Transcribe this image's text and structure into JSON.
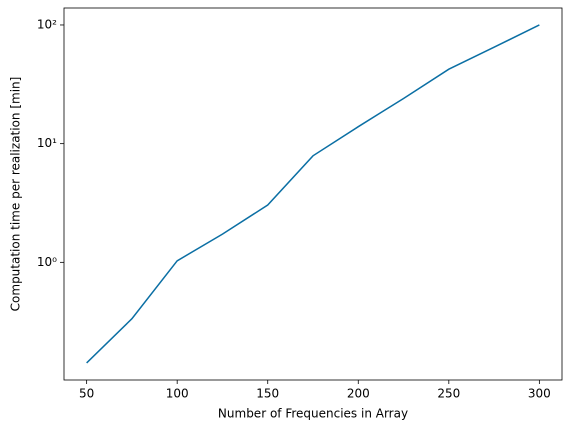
{
  "chart_data": {
    "type": "line",
    "xlabel": "Number of Frequencies in Array",
    "ylabel": "Computation time per realization [min]",
    "x": [
      50,
      75,
      100,
      125,
      150,
      175,
      200,
      225,
      250,
      275,
      300
    ],
    "series": [
      {
        "color": "#0b6fa4",
        "values": [
          0.142,
          0.335,
          1.03,
          1.73,
          3.04,
          7.9,
          13.9,
          24,
          42.4,
          65,
          100
        ]
      }
    ],
    "xlim": [
      37.5,
      312.5
    ],
    "xticks": [
      50,
      100,
      150,
      200,
      250,
      300
    ],
    "ylim": [
      0.102,
      139
    ],
    "yscale": "log",
    "yticks": [
      {
        "value": 1,
        "label": "10⁰"
      },
      {
        "value": 10,
        "label": "10¹"
      },
      {
        "value": 100,
        "label": "10²"
      }
    ]
  }
}
